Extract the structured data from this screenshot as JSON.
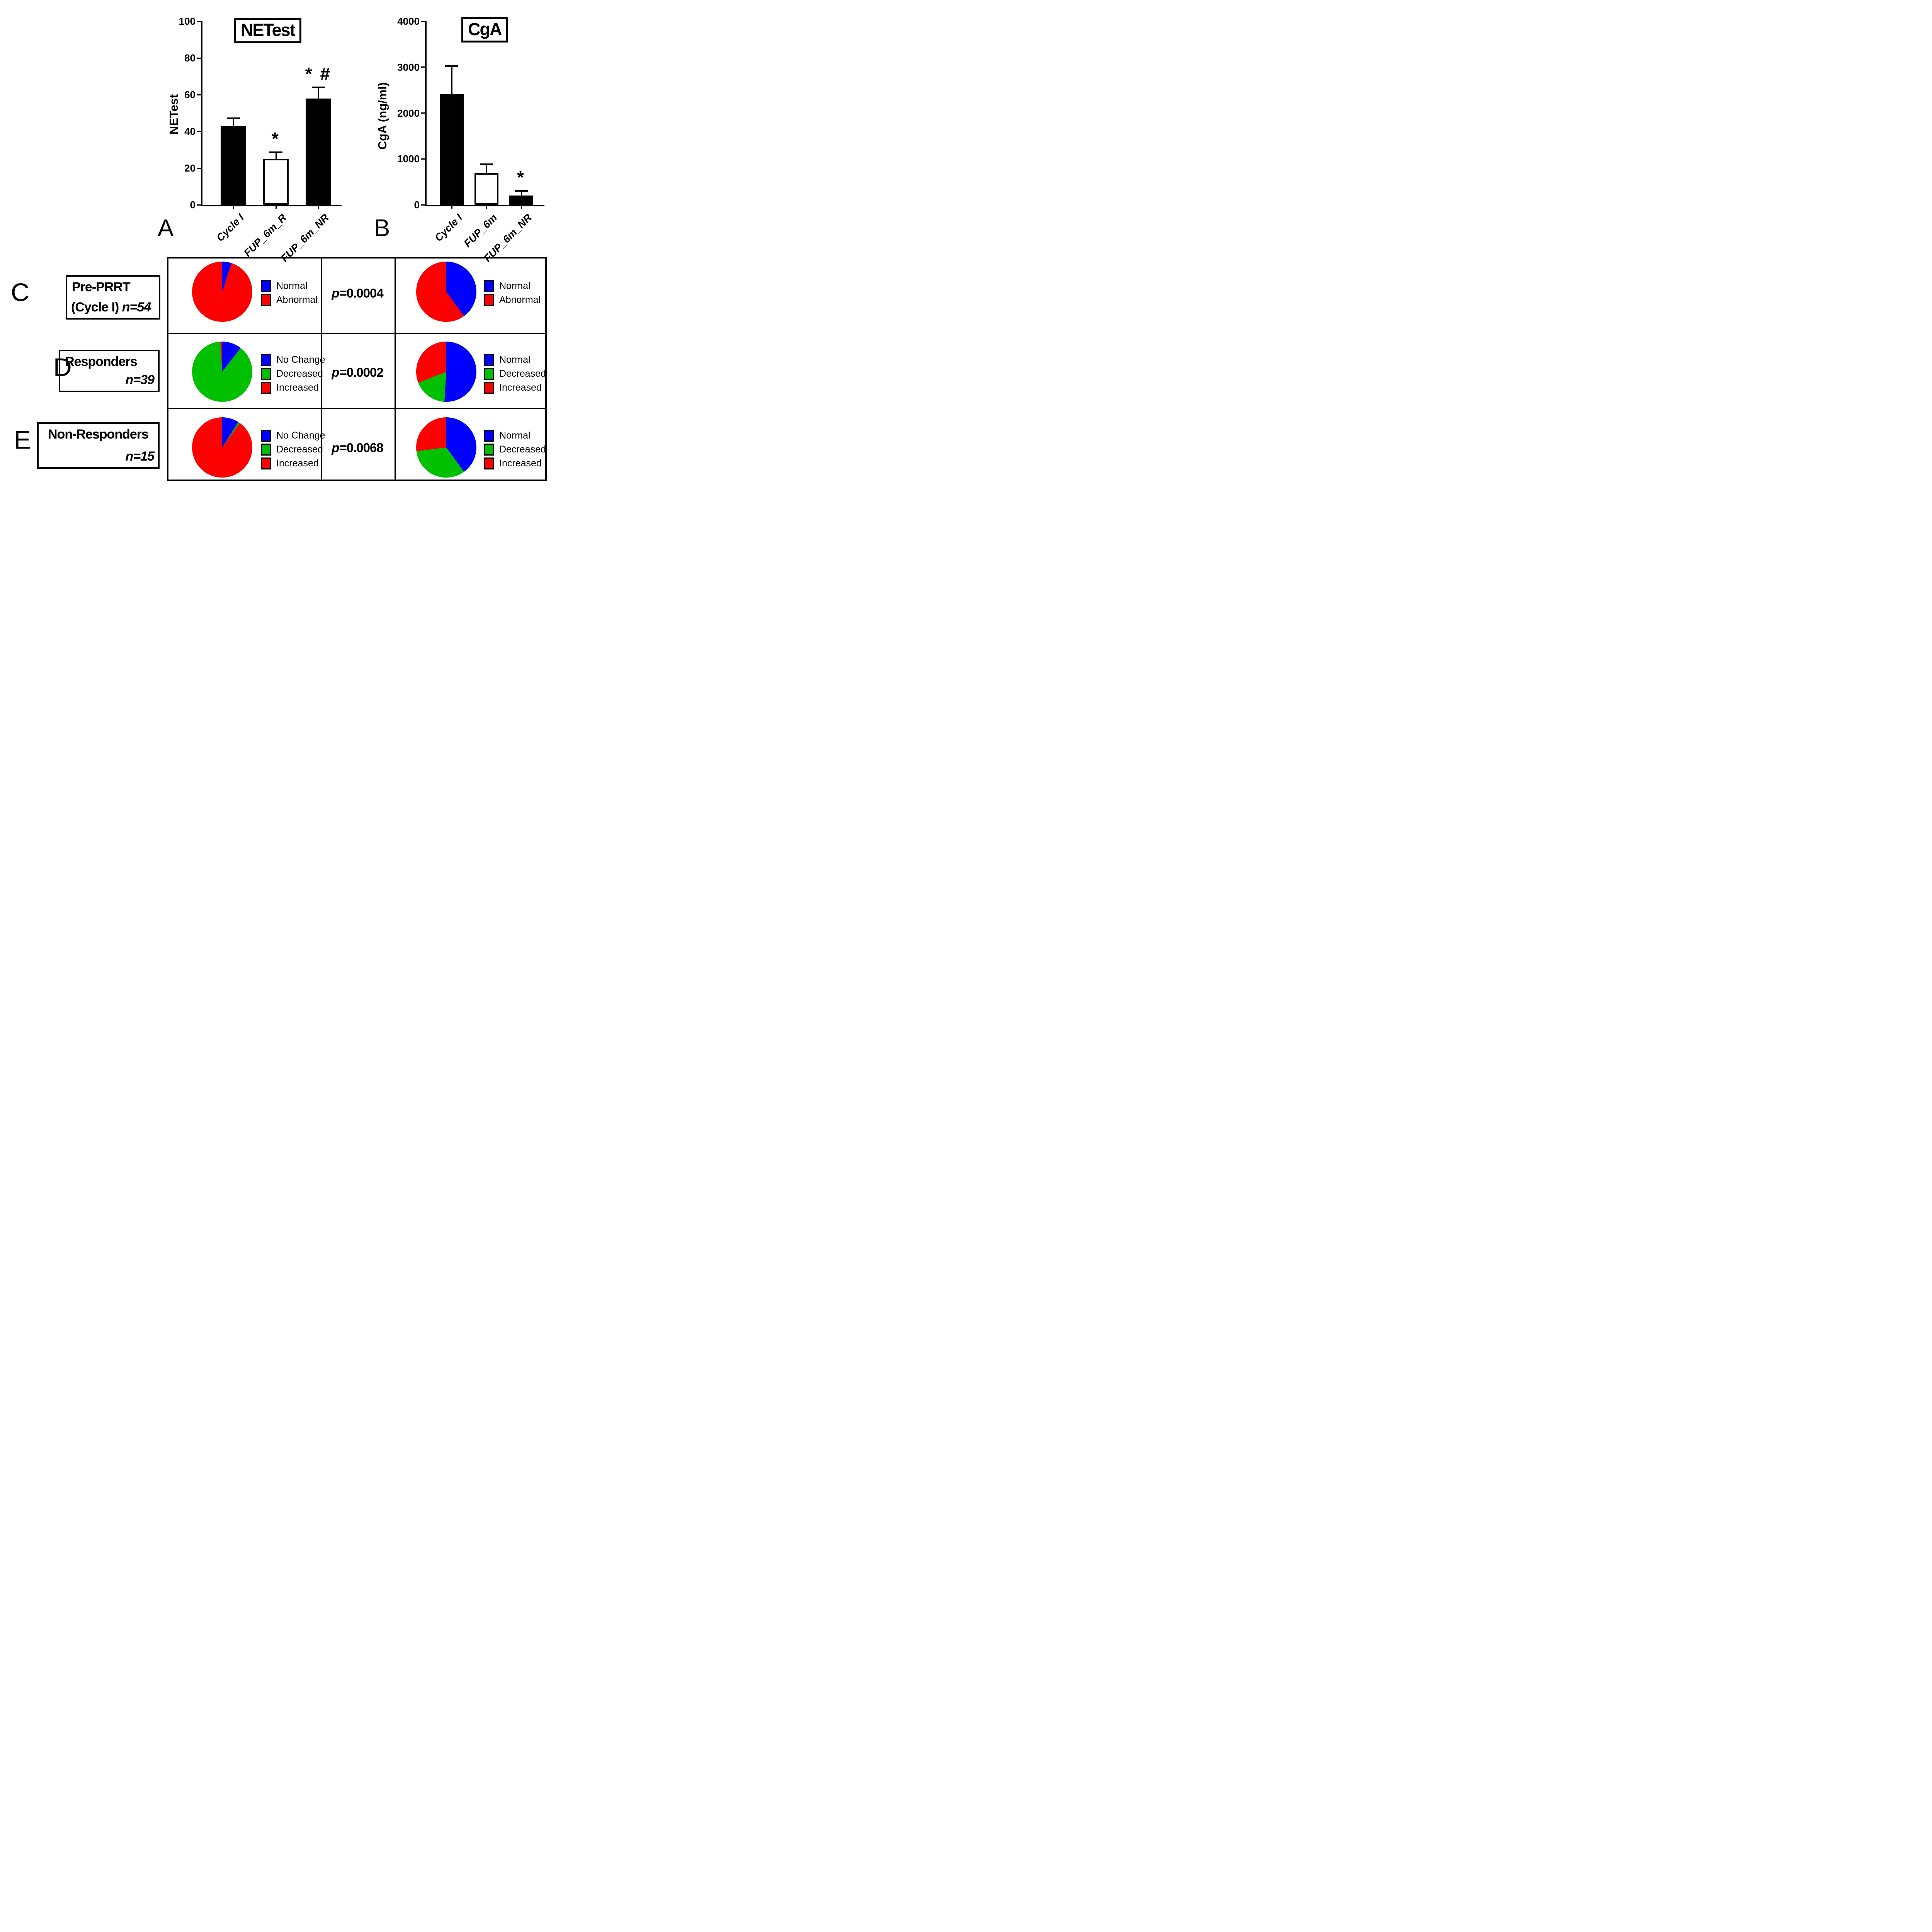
{
  "chart_data": [
    {
      "type": "bar",
      "panel_letter": "A",
      "title": "NETest",
      "ylabel": "NETest",
      "xlabel": "",
      "categories": [
        "Cycle I",
        "FUP_6m_R",
        "FUP_6m_NR"
      ],
      "values": [
        43,
        25,
        58
      ],
      "errors": [
        4.5,
        4,
        6.5
      ],
      "significance": [
        "",
        "*",
        "* #"
      ],
      "bar_colors": [
        "#000000",
        "#ffffff",
        "#000000"
      ],
      "ylim": [
        0,
        100
      ],
      "yticks": [
        0,
        20,
        40,
        60,
        80,
        100
      ],
      "grid": "off"
    },
    {
      "type": "bar",
      "panel_letter": "B",
      "title": "CgA",
      "ylabel": "CgA (ng/ml)",
      "xlabel": "",
      "categories": [
        "Cycle I",
        "FUP_6m",
        "FUP_6m_NR"
      ],
      "values": [
        2420,
        690,
        200
      ],
      "errors": [
        620,
        210,
        120
      ],
      "significance": [
        "",
        "",
        "*"
      ],
      "bar_colors": [
        "#000000",
        "#ffffff",
        "#000000"
      ],
      "ylim": [
        0,
        4000
      ],
      "yticks": [
        0,
        1000,
        2000,
        3000,
        4000
      ],
      "grid": "off"
    },
    {
      "type": "pie",
      "panel": "C",
      "biomarker": "NETest",
      "legend_position": "right",
      "slices": [
        {
          "label": "Normal",
          "color": "#0000ff",
          "pct": 5
        },
        {
          "label": "Abnormal",
          "color": "#ff0000",
          "pct": 95
        }
      ]
    },
    {
      "type": "pie",
      "panel": "C",
      "biomarker": "CgA",
      "legend_position": "right",
      "slices": [
        {
          "label": "Normal",
          "color": "#0000ff",
          "pct": 40
        },
        {
          "label": "Abnormal",
          "color": "#ff0000",
          "pct": 60
        }
      ]
    },
    {
      "type": "pie",
      "panel": "D",
      "biomarker": "NETest",
      "legend_position": "right",
      "slices": [
        {
          "label": "No Change",
          "color": "#0000ff",
          "pct": 10.5
        },
        {
          "label": "Decreased",
          "color": "#00c000",
          "pct": 88.5
        },
        {
          "label": "Increased",
          "color": "#ff0000",
          "pct": 1
        }
      ]
    },
    {
      "type": "pie",
      "panel": "D",
      "biomarker": "CgA",
      "legend_position": "right",
      "slices": [
        {
          "label": "Normal",
          "color": "#0000ff",
          "pct": 51
        },
        {
          "label": "Decreased",
          "color": "#00c000",
          "pct": 18
        },
        {
          "label": "Increased",
          "color": "#ff0000",
          "pct": 31
        }
      ]
    },
    {
      "type": "pie",
      "panel": "E",
      "biomarker": "NETest",
      "legend_position": "right",
      "slices": [
        {
          "label": "No Change",
          "color": "#0000ff",
          "pct": 9
        },
        {
          "label": "Decreased",
          "color": "#00c000",
          "pct": 1
        },
        {
          "label": "Increased",
          "color": "#ff0000",
          "pct": 90
        }
      ]
    },
    {
      "type": "pie",
      "panel": "E",
      "biomarker": "CgA",
      "legend_position": "right",
      "slices": [
        {
          "label": "Normal",
          "color": "#0000ff",
          "pct": 40
        },
        {
          "label": "Decreased",
          "color": "#00c000",
          "pct": 33
        },
        {
          "label": "Increased",
          "color": "#ff0000",
          "pct": 27
        }
      ]
    }
  ],
  "table": {
    "rows": [
      {
        "letter": "C",
        "label_line1": "Pre-PRRT",
        "label_line2_prefix": "(Cycle I) ",
        "n_text": "n=54",
        "p_italic": "p",
        "p_value": "=0.0004"
      },
      {
        "letter": "D",
        "label_line1": "Responders",
        "label_line2_prefix": "",
        "n_text": "n=39",
        "p_italic": "p",
        "p_value": "=0.0002"
      },
      {
        "letter": "E",
        "label_line1": "Non-Responders",
        "label_line2_prefix": "",
        "n_text": "n=15",
        "p_italic": "p",
        "p_value": "=0.0068"
      }
    ]
  },
  "colors": {
    "normal_blue": "#0000ff",
    "decreased_green": "#00c000",
    "increased_red": "#ff0000",
    "ink": "#000000"
  }
}
